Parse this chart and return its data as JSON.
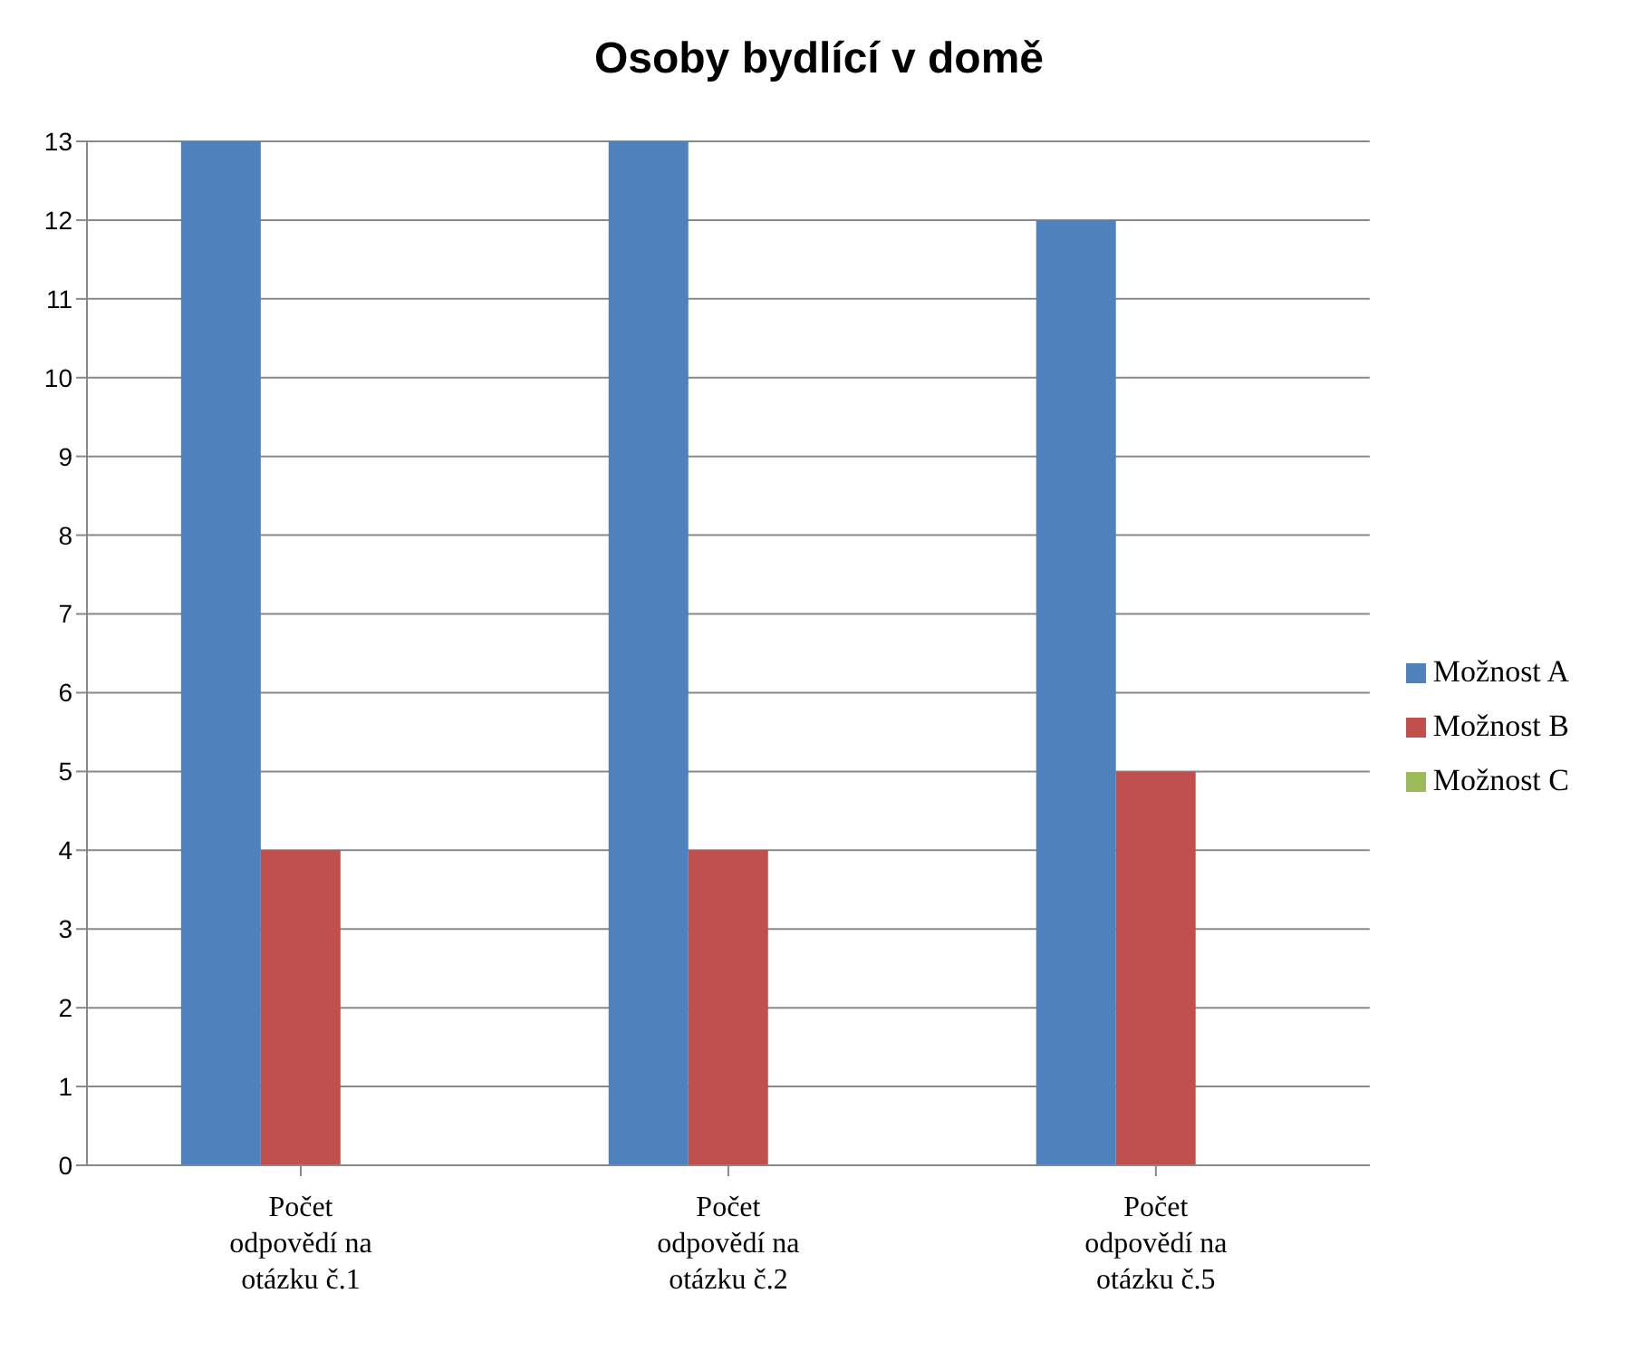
{
  "chart_data": {
    "type": "bar",
    "title": "Osoby bydlící v domě",
    "categories": [
      "Počet odpovědí na otázku č.1",
      "Počet odpovědí na otázku č.2",
      "Počet odpovědí na otázku č.5"
    ],
    "series": [
      {
        "name": "Možnost A",
        "color": "#4f81bd",
        "values": [
          13,
          13,
          12
        ]
      },
      {
        "name": "Možnost B",
        "color": "#c0504d",
        "values": [
          4,
          4,
          5
        ]
      },
      {
        "name": "Možnost C",
        "color": "#9bbb59",
        "values": [
          0,
          0,
          0
        ]
      }
    ],
    "ylim": [
      0,
      13
    ],
    "yticks": [
      0,
      1,
      2,
      3,
      4,
      5,
      6,
      7,
      8,
      9,
      10,
      11,
      12,
      13
    ],
    "grid": "y",
    "legend": "right"
  }
}
